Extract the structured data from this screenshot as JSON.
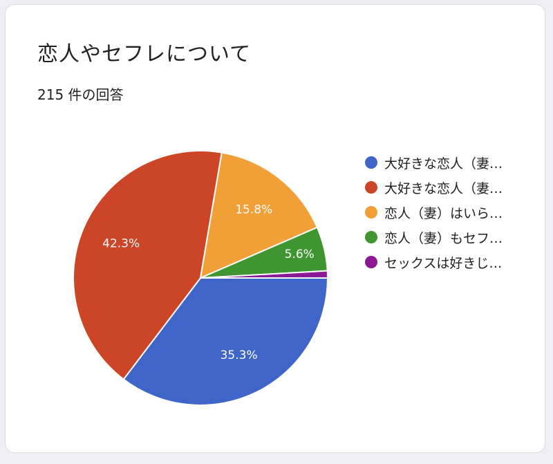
{
  "card": {
    "title": "恋人やセフレについて",
    "response_count": "215 件の回答"
  },
  "chart_data": {
    "type": "pie",
    "title": "恋人やセフレについて",
    "subtitle": "215 件の回答",
    "legend_position": "right",
    "slices": [
      {
        "label": "大好きな恋人（妻…",
        "value": 35.3,
        "display": "35.3%",
        "color": "#3f65c8"
      },
      {
        "label": "大好きな恋人（妻…",
        "value": 42.3,
        "display": "42.3%",
        "color": "#cb4526"
      },
      {
        "label": "恋人（妻）はいら…",
        "value": 15.8,
        "display": "15.8%",
        "color": "#f1a038"
      },
      {
        "label": "恋人（妻）もセフ…",
        "value": 5.6,
        "display": "5.6%",
        "color": "#3f952f"
      },
      {
        "label": "セックスは好きじ…",
        "value": 0.9,
        "display": "",
        "color": "#8c1896"
      }
    ]
  }
}
